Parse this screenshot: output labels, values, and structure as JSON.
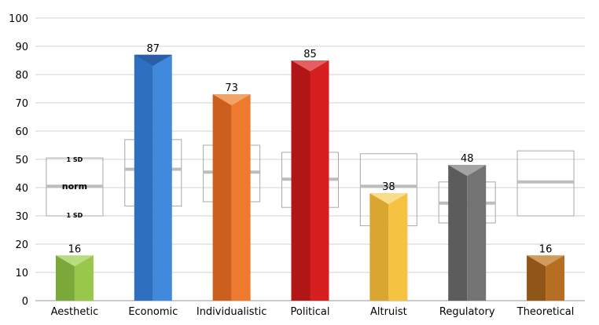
{
  "chart_data": {
    "type": "bar",
    "title": "",
    "xlabel": "",
    "ylabel": "",
    "ylim": [
      0,
      100
    ],
    "yticks": [
      0,
      10,
      20,
      30,
      40,
      50,
      60,
      70,
      80,
      90,
      100
    ],
    "grid": true,
    "categories": [
      "Aesthetic",
      "Economic",
      "Individualistic",
      "Political",
      "Altruist",
      "Regulatory",
      "Theoretical"
    ],
    "values": [
      16,
      87,
      73,
      85,
      38,
      48,
      16
    ],
    "colors": [
      {
        "light": "#98c74a",
        "dark": "#7aa83a",
        "top": "#b9dc80"
      },
      {
        "light": "#4189dd",
        "dark": "#2f6fbf",
        "top": "#2a5fa8"
      },
      {
        "light": "#ee7a2e",
        "dark": "#cc5f1e",
        "top": "#f2a36a"
      },
      {
        "light": "#d61f1f",
        "dark": "#b01616",
        "top": "#e46060"
      },
      {
        "light": "#f5c242",
        "dark": "#d9a731",
        "top": "#f9dd8a"
      },
      {
        "light": "#737373",
        "dark": "#5c5c5c",
        "top": "#a3a3a3"
      },
      {
        "light": "#b56e22",
        "dark": "#8f5618",
        "top": "#d19a5e"
      }
    ],
    "norms": [
      {
        "mean": 40.5,
        "sd_low": 30,
        "sd_high": 50.5
      },
      {
        "mean": 46.5,
        "sd_low": 33.5,
        "sd_high": 57
      },
      {
        "mean": 45.5,
        "sd_low": 35,
        "sd_high": 55
      },
      {
        "mean": 43,
        "sd_low": 33,
        "sd_high": 52.5
      },
      {
        "mean": 40.5,
        "sd_low": 26.5,
        "sd_high": 52
      },
      {
        "mean": 34.5,
        "sd_low": 27.5,
        "sd_high": 42
      },
      {
        "mean": 42,
        "sd_low": 30,
        "sd_high": 53
      }
    ],
    "norm_labels": {
      "sd_upper": "1 SD",
      "mean": "norm",
      "sd_lower": "1 SD"
    }
  }
}
